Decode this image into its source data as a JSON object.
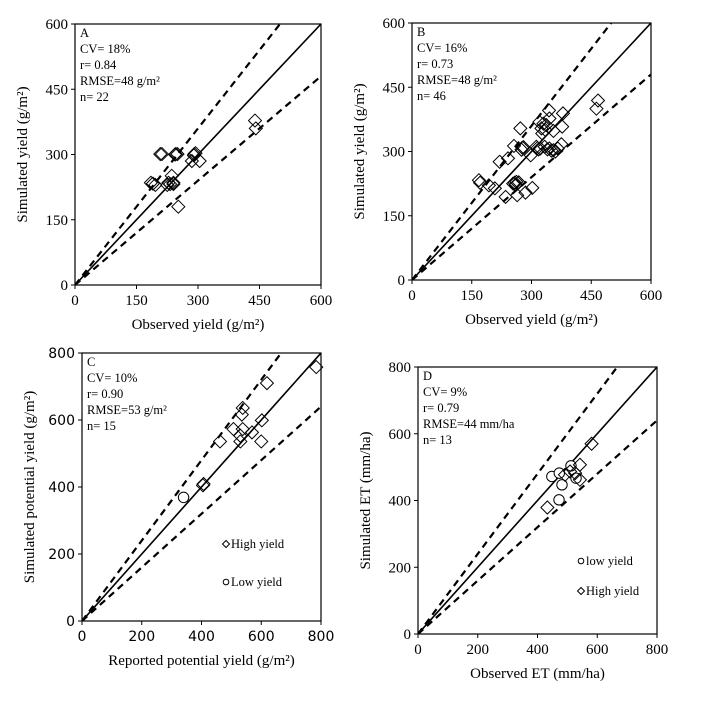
{
  "chart_data": [
    {
      "type": "scatter",
      "panel_label": "A",
      "stats": [
        "CV= 18%",
        "r= 0.84",
        "RMSE=48 g/m²",
        "n= 22"
      ],
      "xlabel": "Observed yield (g/m²)",
      "ylabel": "Simulated yield (g/m²)",
      "xlim": [
        0,
        600
      ],
      "ylim": [
        0,
        600
      ],
      "xticks": [
        0,
        150,
        300,
        450,
        600
      ],
      "yticks": [
        0,
        150,
        300,
        450,
        600
      ],
      "reference_lines": [
        {
          "slope": 1,
          "style": "solid"
        },
        {
          "slope": 1.2,
          "style": "dashed"
        },
        {
          "slope": 0.8,
          "style": "dashed"
        }
      ],
      "series": [
        {
          "marker": "diamond",
          "points": [
            [
              208,
              301
            ],
            [
              212,
              301
            ],
            [
              246,
              301
            ],
            [
              250,
              301
            ],
            [
              291,
              301
            ],
            [
              294,
              303
            ],
            [
              285,
              285
            ],
            [
              304,
              285
            ],
            [
              185,
              235
            ],
            [
              190,
              233
            ],
            [
              196,
              230
            ],
            [
              228,
              235
            ],
            [
              232,
              232
            ],
            [
              236,
              251
            ],
            [
              240,
              235
            ],
            [
              240,
              232
            ],
            [
              252,
              180
            ],
            [
              439,
              378
            ],
            [
              441,
              360
            ],
            [
              244,
              300
            ],
            [
              225,
              230
            ],
            [
              290,
              298
            ]
          ]
        }
      ]
    },
    {
      "type": "scatter",
      "panel_label": "B",
      "stats": [
        "CV= 16%",
        "r= 0.73",
        "RMSE=48 g/m²",
        "n= 46"
      ],
      "xlabel": "Observed yield (g/m²)",
      "ylabel": "Simulated yield (g/m²)",
      "xlim": [
        0,
        600
      ],
      "ylim": [
        0,
        600
      ],
      "xticks": [
        0,
        150,
        300,
        450,
        600
      ],
      "yticks": [
        0,
        150,
        300,
        450,
        600
      ],
      "reference_lines": [
        {
          "slope": 1,
          "style": "solid"
        },
        {
          "slope": 1.2,
          "style": "dashed"
        },
        {
          "slope": 0.8,
          "style": "dashed"
        }
      ],
      "series": [
        {
          "marker": "diamond",
          "points": [
            [
              168,
              233
            ],
            [
              171,
              227
            ],
            [
              193,
              221
            ],
            [
              208,
              214
            ],
            [
              235,
              194
            ],
            [
              220,
              276
            ],
            [
              241,
              284
            ],
            [
              256,
              313
            ],
            [
              272,
              354
            ],
            [
              262,
              229
            ],
            [
              254,
              225
            ],
            [
              258,
              227
            ],
            [
              264,
              198
            ],
            [
              285,
              204
            ],
            [
              302,
              215
            ],
            [
              298,
              291
            ],
            [
              277,
              309
            ],
            [
              275,
              304
            ],
            [
              312,
              311
            ],
            [
              322,
              307
            ],
            [
              333,
              311
            ],
            [
              345,
              307
            ],
            [
              355,
              303
            ],
            [
              366,
              307
            ],
            [
              375,
              317
            ],
            [
              325,
              354
            ],
            [
              337,
              362
            ],
            [
              345,
              377
            ],
            [
              344,
              396
            ],
            [
              327,
              342
            ],
            [
              355,
              348
            ],
            [
              377,
              358
            ],
            [
              379,
              389
            ],
            [
              463,
              400
            ],
            [
              467,
              419
            ],
            [
              320,
              369
            ],
            [
              318,
              305
            ],
            [
              340,
              305
            ],
            [
              350,
              302
            ],
            [
              360,
              300
            ],
            [
              330,
              365
            ],
            [
              335,
              350
            ],
            [
              260,
              222
            ],
            [
              268,
              228
            ],
            [
              280,
              310
            ],
            [
              315,
              308
            ]
          ]
        }
      ]
    },
    {
      "type": "scatter",
      "panel_label": "C",
      "stats": [
        "CV= 10%",
        "r= 0.90",
        "RMSE=53 g/m²",
        "n= 15"
      ],
      "xlabel": "Reported potential yield (g/m²)",
      "ylabel": "Simulated potential yield (g/m²)",
      "xlim": [
        0,
        800
      ],
      "ylim": [
        0,
        800
      ],
      "xticks": [
        0,
        200,
        400,
        600,
        800
      ],
      "yticks": [
        0,
        200,
        400,
        600,
        800
      ],
      "reference_lines": [
        {
          "slope": 1,
          "style": "solid"
        },
        {
          "slope": 1.2,
          "style": "dashed"
        },
        {
          "slope": 0.8,
          "style": "dashed"
        }
      ],
      "series": [
        {
          "name": "High yield",
          "marker": "diamond",
          "points": [
            [
              784,
              758
            ],
            [
              619,
              710
            ],
            [
              538,
              636
            ],
            [
              535,
              616
            ],
            [
              507,
              573
            ],
            [
              538,
              573
            ],
            [
              569,
              563
            ],
            [
              602,
              599
            ],
            [
              600,
              536
            ],
            [
              530,
              536
            ],
            [
              462,
              536
            ],
            [
              407,
              409
            ],
            [
              530,
              553
            ],
            [
              405,
              405
            ]
          ]
        },
        {
          "name": "Low yield",
          "marker": "circle",
          "points": [
            [
              340,
              369
            ]
          ]
        }
      ]
    },
    {
      "type": "scatter",
      "panel_label": "D",
      "stats": [
        "CV= 9%",
        "r= 0.79",
        "RMSE=44 mm/ha",
        "n= 13"
      ],
      "xlabel": "Observed ET (mm/ha)",
      "ylabel": "Simulated ET (mm/ha)",
      "xlim": [
        0,
        800
      ],
      "ylim": [
        0,
        800
      ],
      "xticks": [
        0,
        200,
        400,
        600,
        800
      ],
      "yticks": [
        0,
        200,
        400,
        600,
        800
      ],
      "reference_lines": [
        {
          "slope": 1,
          "style": "solid"
        },
        {
          "slope": 1.2,
          "style": "dashed"
        },
        {
          "slope": 0.8,
          "style": "dashed"
        }
      ],
      "series": [
        {
          "name": "low yield",
          "marker": "circle",
          "points": [
            [
              448,
              472
            ],
            [
              473,
              482
            ],
            [
              482,
              447
            ],
            [
              472,
              402
            ],
            [
              512,
              504
            ],
            [
              529,
              467
            ]
          ]
        },
        {
          "name": "High yield",
          "marker": "diamond",
          "points": [
            [
              581,
              570
            ],
            [
              542,
              507
            ],
            [
              526,
              482
            ],
            [
              542,
              462
            ],
            [
              492,
              477
            ],
            [
              433,
              379
            ],
            [
              509,
              487
            ]
          ]
        }
      ]
    }
  ]
}
